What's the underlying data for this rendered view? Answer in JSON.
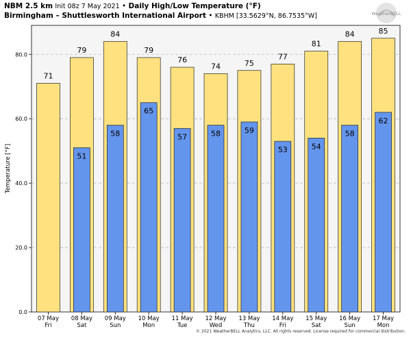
{
  "header": {
    "model": "NBM 2.5 km",
    "init": "Init 08z 7 May 2021",
    "sep1": "•",
    "product": "Daily High/Low Temperature (°F)",
    "station": "Birmingham – Shuttlesworth International Airport",
    "sep2": "•",
    "station_meta": "KBHM [33.5629°N, 86.7535°W]"
  },
  "logo": {
    "text": "WeatherBELL"
  },
  "footer": {
    "copyright": "© 2021 WeatherBELL Analytics, LLC. All rights reserved. License required for commercial distribution."
  },
  "colors": {
    "high": "#ffe27f",
    "low": "#6495ed",
    "plot_bg": "#f5f5f5",
    "grid": "#bbbbbb"
  },
  "chart_data": {
    "type": "bar",
    "categories": [
      "07 May\nFri",
      "08 May\nSat",
      "09 May\nSun",
      "10 May\nMon",
      "11 May\nTue",
      "12 May\nWed",
      "13 May\nThu",
      "14 May\nFri",
      "15 May\nSat",
      "16 May\nSun",
      "17 May\nMon"
    ],
    "series": [
      {
        "values": [
          71,
          79,
          84,
          79,
          76,
          74,
          75,
          77,
          81,
          84,
          85
        ],
        "color": "#ffe27f"
      },
      {
        "values": [
          null,
          51,
          58,
          65,
          57,
          58,
          59,
          53,
          54,
          58,
          62
        ],
        "color": "#6495ed"
      }
    ],
    "ylabel": "Temperature [°F]",
    "yticks": [
      "0.0",
      "20.0",
      "40.0",
      "60.0",
      "80.0"
    ],
    "ylim": [
      0,
      89
    ],
    "grid": true,
    "legend": "none"
  }
}
